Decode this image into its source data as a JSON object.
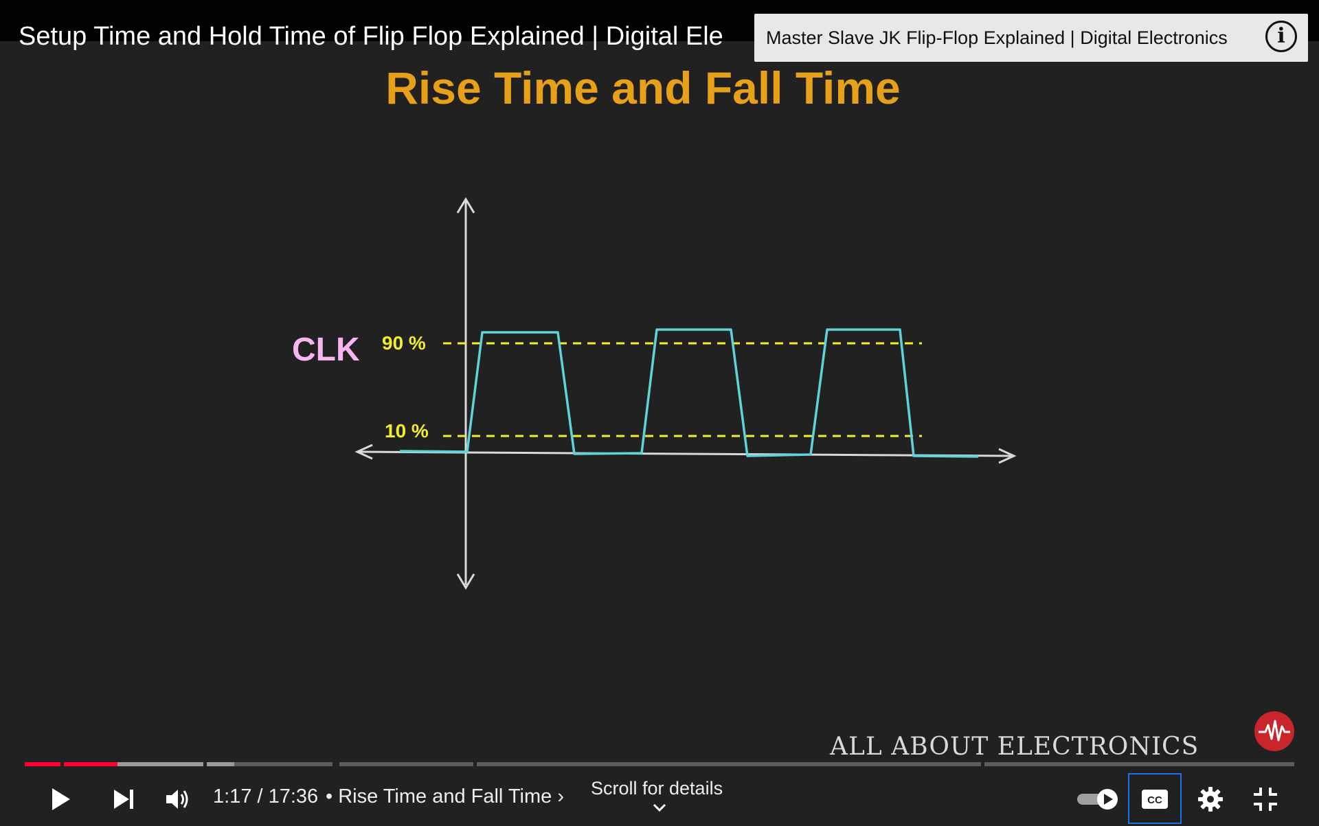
{
  "video": {
    "title": "Setup Time and Hold Time of Flip Flop Explained | Digital Electronics",
    "title_visible": "Setup Time and Hold Time of Flip Flop Explained | Digital Ele"
  },
  "endcard": {
    "title": "Master Slave JK Flip-Flop Explained | Digital Electronics",
    "info_icon": "info-icon",
    "info_glyph": "i"
  },
  "slide": {
    "title": "Rise Time and Fall Time",
    "signal_label": "CLK",
    "level_high": "90 %",
    "level_low": "10 %",
    "watermark": "ALL ABOUT ELECTRONICS",
    "colors": {
      "title": "#e6a01a",
      "signal": "#5fd3da",
      "threshold": "#f4ee28",
      "label": "#f7b6f2",
      "axes": "#d9d9d9"
    }
  },
  "progress": {
    "played_fraction": 0.073,
    "buffered_fraction": 0.21,
    "colors": {
      "played": "#ff0033",
      "buffered": "#9a9a9a",
      "track": "#5d5d5d"
    }
  },
  "controls": {
    "play_icon": "play-icon",
    "next_icon": "next-icon",
    "volume_icon": "volume-icon",
    "current_time": "1:17",
    "separator": " / ",
    "duration": "17:36",
    "time_display": "1:17 / 17:36",
    "chapter_prefix": "•",
    "chapter_title": "Rise Time and Fall Time",
    "chapter_chevron": "›",
    "scroll_hint": "Scroll for details",
    "autoplay_icon": "autoplay-toggle-icon",
    "autoplay_on": true,
    "captions_icon": "captions-icon",
    "captions_label": "CC",
    "settings_icon": "settings-gear-icon",
    "fullscreen_icon": "exit-fullscreen-icon"
  }
}
